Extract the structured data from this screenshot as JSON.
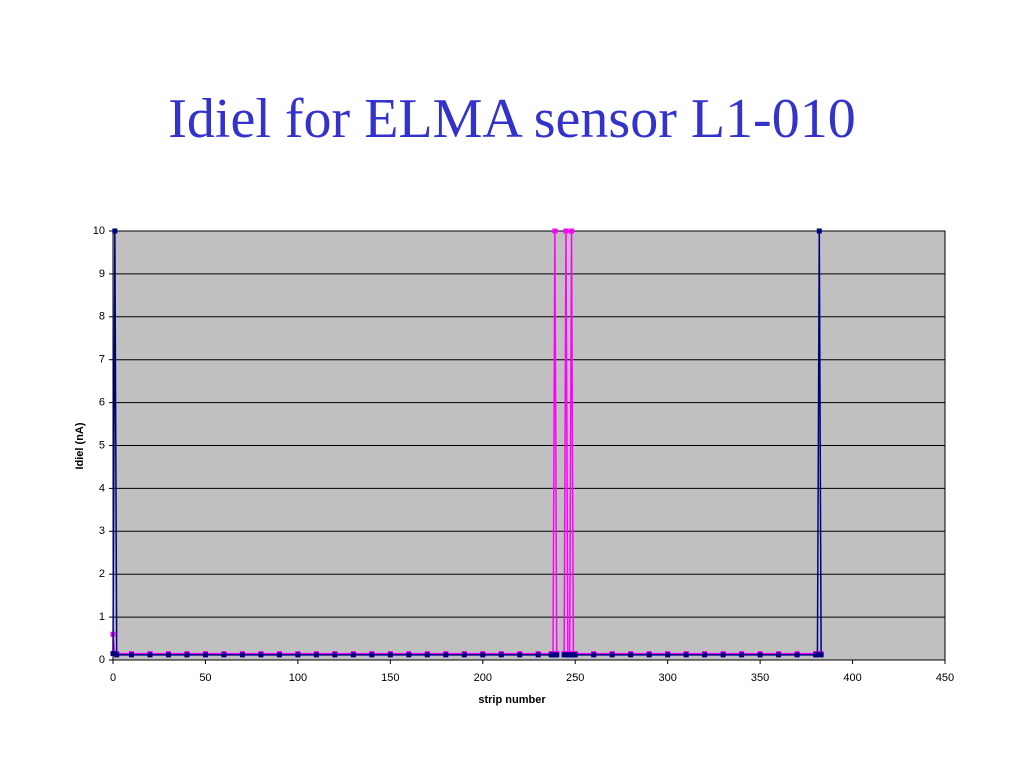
{
  "chart_data": {
    "type": "line",
    "title": "Idiel for ELMA sensor L1-010",
    "x_label": "strip number",
    "y_label": "Idiel (nA)",
    "x": [
      0,
      1,
      2,
      10,
      20,
      30,
      40,
      50,
      60,
      70,
      80,
      90,
      100,
      110,
      120,
      130,
      140,
      150,
      160,
      170,
      180,
      190,
      200,
      210,
      220,
      230,
      237,
      238,
      239,
      240,
      241,
      244,
      245,
      246,
      247,
      248,
      249,
      250,
      260,
      270,
      280,
      290,
      300,
      310,
      320,
      330,
      340,
      350,
      360,
      370,
      380,
      381,
      382,
      383
    ],
    "series": [
      {
        "color": "#ff00ff",
        "values": [
          0.6,
          0.15,
          0.15,
          0.15,
          0.15,
          0.15,
          0.15,
          0.15,
          0.15,
          0.15,
          0.15,
          0.15,
          0.15,
          0.15,
          0.15,
          0.15,
          0.15,
          0.15,
          0.15,
          0.15,
          0.15,
          0.15,
          0.15,
          0.15,
          0.15,
          0.15,
          0.15,
          0.15,
          10,
          0.15,
          null,
          0.15,
          10,
          0.15,
          0.15,
          10,
          0.15,
          0.15,
          0.15,
          0.15,
          0.15,
          0.15,
          0.15,
          0.15,
          0.15,
          0.15,
          0.15,
          0.15,
          0.15,
          0.15,
          0.15,
          0.15,
          0.15,
          0.15
        ]
      },
      {
        "color": "#000080",
        "values": [
          0.15,
          10,
          0.12,
          0.12,
          0.12,
          0.12,
          0.12,
          0.12,
          0.12,
          0.12,
          0.12,
          0.12,
          0.12,
          0.12,
          0.12,
          0.12,
          0.12,
          0.12,
          0.12,
          0.12,
          0.12,
          0.12,
          0.12,
          0.12,
          0.12,
          0.12,
          0.12,
          0.12,
          0.12,
          0.12,
          null,
          0.12,
          0.12,
          0.12,
          0.12,
          0.12,
          0.12,
          0.12,
          0.12,
          0.12,
          0.12,
          0.12,
          0.12,
          0.12,
          0.12,
          0.12,
          0.12,
          0.12,
          0.12,
          0.12,
          0.12,
          0.12,
          10,
          0.12
        ]
      }
    ],
    "xlim": [
      0,
      450
    ],
    "xticks": [
      0,
      50,
      100,
      150,
      200,
      250,
      300,
      350,
      400,
      450
    ],
    "ylim": [
      0,
      10
    ],
    "yticks": [
      0,
      1,
      2,
      3,
      4,
      5,
      6,
      7,
      8,
      9,
      10
    ],
    "grid": true,
    "plot_background": "#c0c0c0"
  }
}
